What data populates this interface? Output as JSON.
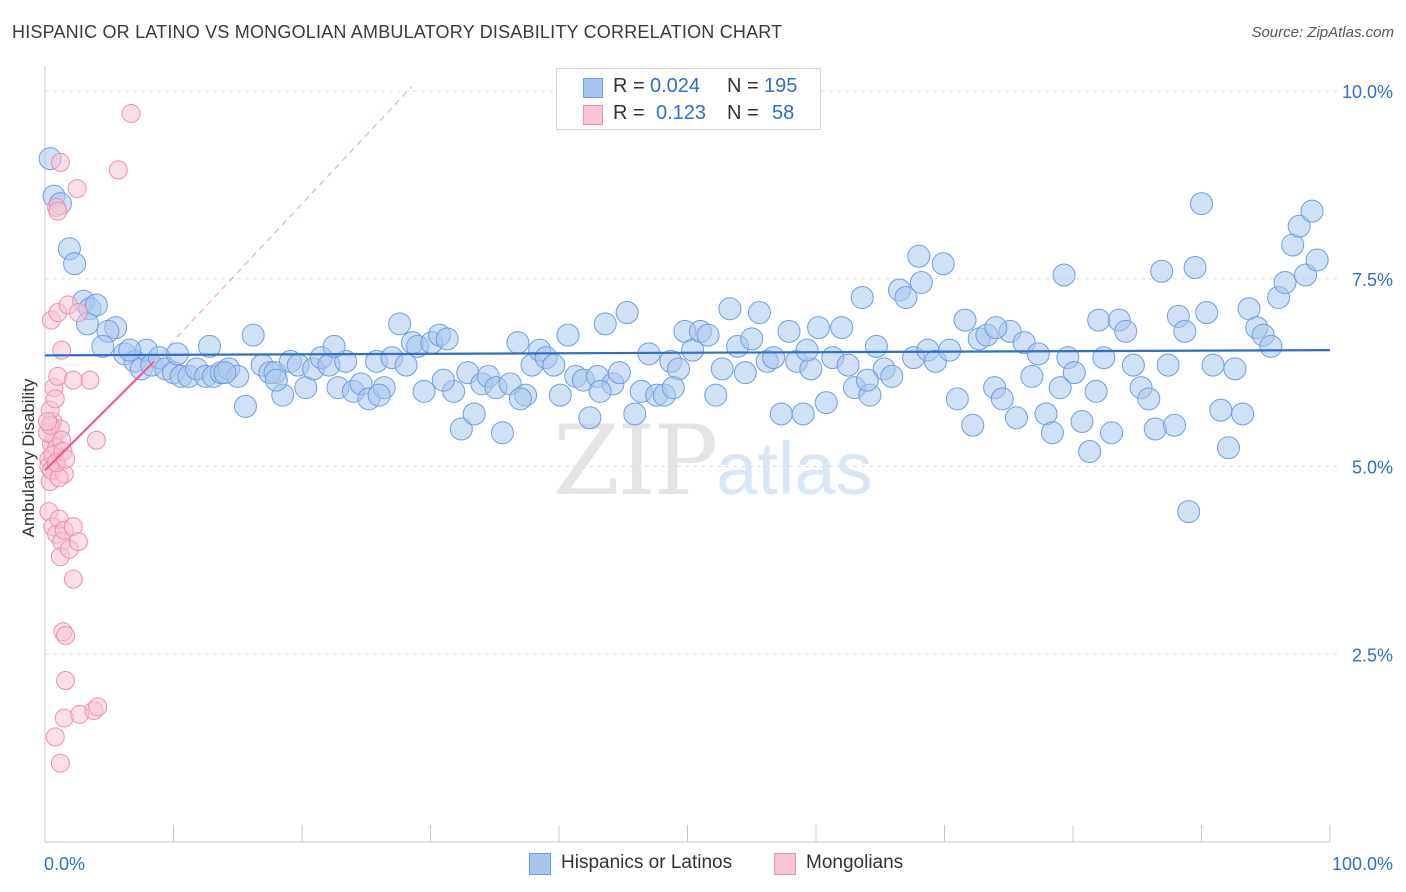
{
  "header": {
    "title": "HISPANIC OR LATINO VS MONGOLIAN AMBULATORY DISABILITY CORRELATION CHART",
    "source": "Source: ZipAtlas.com"
  },
  "watermark": {
    "zip": "ZIP",
    "atlas": "atlas"
  },
  "stats": {
    "rows": [
      {
        "r_label": "R =",
        "r_value": "0.024",
        "n_label": "N =",
        "n_value": "195",
        "color": "#a9c6f0",
        "border": "#6f9fe0"
      },
      {
        "r_label": "R =",
        "r_value": "0.123",
        "n_label": "N =",
        "n_value": "58",
        "color": "#f8c3d3",
        "border": "#ee8fad"
      }
    ]
  },
  "legend": {
    "items": [
      {
        "label": "Hispanics or Latinos",
        "color": "#a9c6f0",
        "border": "#6f9fe0"
      },
      {
        "label": "Mongolians",
        "color": "#f8c3d3",
        "border": "#ee8fad"
      }
    ]
  },
  "chart_data": {
    "type": "scatter",
    "title": "HISPANIC OR LATINO VS MONGOLIAN AMBULATORY DISABILITY CORRELATION CHART",
    "ylabel": "Ambulatory Disability",
    "xlabel": "",
    "x_tick_labels": [
      "0.0%",
      "100.0%"
    ],
    "y_tick_labels": [
      "2.5%",
      "5.0%",
      "7.5%",
      "10.0%"
    ],
    "y_ticks": [
      2.5,
      5.0,
      7.5,
      10.0
    ],
    "xlim": [
      0,
      100
    ],
    "ylim": [
      0,
      10.2
    ],
    "grid": true,
    "legend_position": "bottom-center",
    "series": [
      {
        "name": "Hispanics or Latinos",
        "color": "#a9c6f0",
        "edge": "#6f9fe0",
        "trend": {
          "x": [
            0,
            100
          ],
          "y": [
            6.48,
            6.55
          ],
          "color": "#2e6fc9",
          "style": "solid"
        },
        "points": [
          [
            0.4,
            9.1
          ],
          [
            0.7,
            8.6
          ],
          [
            1.2,
            8.5
          ],
          [
            1.9,
            7.9
          ],
          [
            2.3,
            7.7
          ],
          [
            3.0,
            7.2
          ],
          [
            3.5,
            7.1
          ],
          [
            4.0,
            7.15
          ],
          [
            3.3,
            6.9
          ],
          [
            5.5,
            6.85
          ],
          [
            4.9,
            6.8
          ],
          [
            4.5,
            6.6
          ],
          [
            6.2,
            6.5
          ],
          [
            7.0,
            6.4
          ],
          [
            7.5,
            6.3
          ],
          [
            7.9,
            6.55
          ],
          [
            8.3,
            6.35
          ],
          [
            8.9,
            6.45
          ],
          [
            9.4,
            6.3
          ],
          [
            10.0,
            6.25
          ],
          [
            10.6,
            6.2
          ],
          [
            11.2,
            6.2
          ],
          [
            11.8,
            6.3
          ],
          [
            12.5,
            6.2
          ],
          [
            13.1,
            6.2
          ],
          [
            12.8,
            6.6
          ],
          [
            13.7,
            6.25
          ],
          [
            14.3,
            6.3
          ],
          [
            15.0,
            6.2
          ],
          [
            15.6,
            5.8
          ],
          [
            16.2,
            6.75
          ],
          [
            16.9,
            6.35
          ],
          [
            17.5,
            6.25
          ],
          [
            17.9,
            6.25
          ],
          [
            18.5,
            5.95
          ],
          [
            19.1,
            6.4
          ],
          [
            19.7,
            6.35
          ],
          [
            20.3,
            6.05
          ],
          [
            20.9,
            6.3
          ],
          [
            21.5,
            6.45
          ],
          [
            22.1,
            6.35
          ],
          [
            22.8,
            6.05
          ],
          [
            23.4,
            6.4
          ],
          [
            24.0,
            6.0
          ],
          [
            24.6,
            6.1
          ],
          [
            25.2,
            5.9
          ],
          [
            25.8,
            6.4
          ],
          [
            26.4,
            6.05
          ],
          [
            27.0,
            6.45
          ],
          [
            27.6,
            6.9
          ],
          [
            28.1,
            6.35
          ],
          [
            28.6,
            6.65
          ],
          [
            29.0,
            6.6
          ],
          [
            29.5,
            6.0
          ],
          [
            30.1,
            6.65
          ],
          [
            30.7,
            6.75
          ],
          [
            31.3,
            6.7
          ],
          [
            31.8,
            6.0
          ],
          [
            32.4,
            5.5
          ],
          [
            32.9,
            6.25
          ],
          [
            33.4,
            5.7
          ],
          [
            34.0,
            6.1
          ],
          [
            34.5,
            6.2
          ],
          [
            35.1,
            6.05
          ],
          [
            35.6,
            5.45
          ],
          [
            36.2,
            6.1
          ],
          [
            36.8,
            6.65
          ],
          [
            37.4,
            5.95
          ],
          [
            37.9,
            6.35
          ],
          [
            38.5,
            6.55
          ],
          [
            39.0,
            6.45
          ],
          [
            39.6,
            6.35
          ],
          [
            40.1,
            5.95
          ],
          [
            40.7,
            6.75
          ],
          [
            41.3,
            6.2
          ],
          [
            41.9,
            6.15
          ],
          [
            42.4,
            5.65
          ],
          [
            43.0,
            6.2
          ],
          [
            43.6,
            6.9
          ],
          [
            44.2,
            6.1
          ],
          [
            44.7,
            6.25
          ],
          [
            45.3,
            7.05
          ],
          [
            45.9,
            5.7
          ],
          [
            46.4,
            6.0
          ],
          [
            47.0,
            6.5
          ],
          [
            47.6,
            5.95
          ],
          [
            48.2,
            5.95
          ],
          [
            48.7,
            6.4
          ],
          [
            49.3,
            6.3
          ],
          [
            49.8,
            6.8
          ],
          [
            50.4,
            6.55
          ],
          [
            51.0,
            6.8
          ],
          [
            51.6,
            6.75
          ],
          [
            52.2,
            5.95
          ],
          [
            52.7,
            6.3
          ],
          [
            53.3,
            7.1
          ],
          [
            53.9,
            6.6
          ],
          [
            54.5,
            6.25
          ],
          [
            55.0,
            6.7
          ],
          [
            55.6,
            7.05
          ],
          [
            56.2,
            6.4
          ],
          [
            56.7,
            6.45
          ],
          [
            57.3,
            5.7
          ],
          [
            57.9,
            6.8
          ],
          [
            58.5,
            6.4
          ],
          [
            59.0,
            5.7
          ],
          [
            59.6,
            6.3
          ],
          [
            60.2,
            6.85
          ],
          [
            60.8,
            5.85
          ],
          [
            61.3,
            6.45
          ],
          [
            62.0,
            6.85
          ],
          [
            62.5,
            6.35
          ],
          [
            63.0,
            6.05
          ],
          [
            63.6,
            7.25
          ],
          [
            64.2,
            5.95
          ],
          [
            64.7,
            6.6
          ],
          [
            65.3,
            6.3
          ],
          [
            65.9,
            6.2
          ],
          [
            66.5,
            7.35
          ],
          [
            67.0,
            7.25
          ],
          [
            67.6,
            6.45
          ],
          [
            68.2,
            7.45
          ],
          [
            68.7,
            6.55
          ],
          [
            69.3,
            6.4
          ],
          [
            69.9,
            7.7
          ],
          [
            70.4,
            6.55
          ],
          [
            71.0,
            5.9
          ],
          [
            71.6,
            6.95
          ],
          [
            72.2,
            5.55
          ],
          [
            72.7,
            6.7
          ],
          [
            73.3,
            6.75
          ],
          [
            73.9,
            6.05
          ],
          [
            74.5,
            5.9
          ],
          [
            75.1,
            6.8
          ],
          [
            75.6,
            5.65
          ],
          [
            76.2,
            6.65
          ],
          [
            76.8,
            6.2
          ],
          [
            77.3,
            6.5
          ],
          [
            77.9,
            5.7
          ],
          [
            78.4,
            5.45
          ],
          [
            79.0,
            6.05
          ],
          [
            79.6,
            6.45
          ],
          [
            80.1,
            6.25
          ],
          [
            80.7,
            5.6
          ],
          [
            81.3,
            5.2
          ],
          [
            81.8,
            6.0
          ],
          [
            82.4,
            6.45
          ],
          [
            83.0,
            5.45
          ],
          [
            83.6,
            6.95
          ],
          [
            84.1,
            6.8
          ],
          [
            84.7,
            6.35
          ],
          [
            85.3,
            6.05
          ],
          [
            85.9,
            5.9
          ],
          [
            86.4,
            5.5
          ],
          [
            86.9,
            7.6
          ],
          [
            87.4,
            6.35
          ],
          [
            87.9,
            5.55
          ],
          [
            88.2,
            7.0
          ],
          [
            88.7,
            6.8
          ],
          [
            89.0,
            4.4
          ],
          [
            89.5,
            7.65
          ],
          [
            90.0,
            8.5
          ],
          [
            90.4,
            7.05
          ],
          [
            90.9,
            6.35
          ],
          [
            91.5,
            5.75
          ],
          [
            92.1,
            5.25
          ],
          [
            92.6,
            6.3
          ],
          [
            93.2,
            5.7
          ],
          [
            93.7,
            7.1
          ],
          [
            94.3,
            6.85
          ],
          [
            94.8,
            6.75
          ],
          [
            95.4,
            6.6
          ],
          [
            96.0,
            7.25
          ],
          [
            96.5,
            7.45
          ],
          [
            97.1,
            7.95
          ],
          [
            97.6,
            8.2
          ],
          [
            98.1,
            7.55
          ],
          [
            98.6,
            8.4
          ],
          [
            99.0,
            7.75
          ],
          [
            82.0,
            6.95
          ],
          [
            79.3,
            7.55
          ],
          [
            74.0,
            6.85
          ],
          [
            68.0,
            7.8
          ],
          [
            64.0,
            6.15
          ],
          [
            59.3,
            6.55
          ],
          [
            48.9,
            6.05
          ],
          [
            43.2,
            6.0
          ],
          [
            37.0,
            5.9
          ],
          [
            31.0,
            6.15
          ],
          [
            26.0,
            5.95
          ],
          [
            22.5,
            6.6
          ],
          [
            18.0,
            6.15
          ],
          [
            14.0,
            6.25
          ],
          [
            10.3,
            6.5
          ],
          [
            6.6,
            6.55
          ]
        ]
      },
      {
        "name": "Mongolians",
        "color": "#f8c3d3",
        "edge": "#ee8fad",
        "trend": {
          "x": [
            0,
            8.5
          ],
          "y": [
            4.95,
            6.4
          ],
          "color": "#e8618c",
          "style": "solid",
          "extension": {
            "x": [
              8.5,
              28.5
            ],
            "y": [
              6.4,
              10.05
            ],
            "style": "dashed"
          }
        },
        "points": [
          [
            0.3,
            5.1
          ],
          [
            0.4,
            4.8
          ],
          [
            0.5,
            5.3
          ],
          [
            0.6,
            5.6
          ],
          [
            0.7,
            5.4
          ],
          [
            0.8,
            5.05
          ],
          [
            0.9,
            5.25
          ],
          [
            0.2,
            5.45
          ],
          [
            0.3,
            5.0
          ],
          [
            0.5,
            4.95
          ],
          [
            0.6,
            5.15
          ],
          [
            0.4,
            5.75
          ],
          [
            0.7,
            6.05
          ],
          [
            0.8,
            5.9
          ],
          [
            1.0,
            6.2
          ],
          [
            1.2,
            5.5
          ],
          [
            1.3,
            5.35
          ],
          [
            1.5,
            4.9
          ],
          [
            1.1,
            4.85
          ],
          [
            0.9,
            5.05
          ],
          [
            1.4,
            5.2
          ],
          [
            1.6,
            5.1
          ],
          [
            0.3,
            4.4
          ],
          [
            0.6,
            4.2
          ],
          [
            0.9,
            4.1
          ],
          [
            1.1,
            4.3
          ],
          [
            1.3,
            4.0
          ],
          [
            1.2,
            3.8
          ],
          [
            1.5,
            4.15
          ],
          [
            2.2,
            4.2
          ],
          [
            1.9,
            3.9
          ],
          [
            2.6,
            4.0
          ],
          [
            0.5,
            6.95
          ],
          [
            1.0,
            7.05
          ],
          [
            1.3,
            6.55
          ],
          [
            1.8,
            7.15
          ],
          [
            2.6,
            7.05
          ],
          [
            3.5,
            6.15
          ],
          [
            4.0,
            5.35
          ],
          [
            2.2,
            6.15
          ],
          [
            1.2,
            9.05
          ],
          [
            0.9,
            8.45
          ],
          [
            2.5,
            8.7
          ],
          [
            5.7,
            8.95
          ],
          [
            6.7,
            9.7
          ],
          [
            1.0,
            8.4
          ],
          [
            1.4,
            2.8
          ],
          [
            1.6,
            2.75
          ],
          [
            1.6,
            2.15
          ],
          [
            2.2,
            3.5
          ],
          [
            1.5,
            1.65
          ],
          [
            2.7,
            1.7
          ],
          [
            3.8,
            1.75
          ],
          [
            4.1,
            1.8
          ],
          [
            0.8,
            1.4
          ],
          [
            1.2,
            1.05
          ],
          [
            0.4,
            5.55
          ],
          [
            0.2,
            5.6
          ]
        ]
      }
    ]
  }
}
